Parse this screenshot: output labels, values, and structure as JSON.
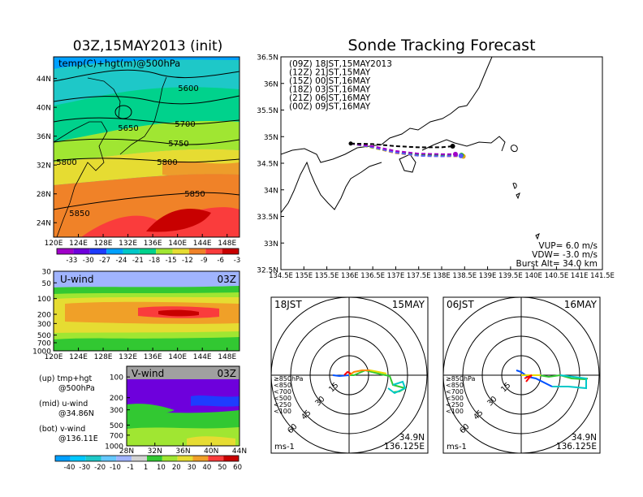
{
  "left_title": "03Z,15MAY2013 (init)",
  "right_title": "Sonde Tracking Forecast",
  "top_map": {
    "label": "temp(C)+hgt(m)@500hPa",
    "lat_labels": [
      "44N",
      "40N",
      "36N",
      "32N",
      "28N",
      "24N"
    ],
    "lon_labels": [
      "120E",
      "124E",
      "128E",
      "132E",
      "136E",
      "140E",
      "144E",
      "148E"
    ],
    "contour_labels": [
      "5600",
      "5650",
      "5700",
      "5750",
      "5800",
      "5800",
      "5850",
      "5850"
    ],
    "colorbar": {
      "labels": [
        "-33",
        "-30",
        "-27",
        "-24",
        "-21",
        "-18",
        "-15",
        "-12",
        "-9",
        "-6",
        "-3"
      ],
      "colors": [
        "#a000c8",
        "#6e00dc",
        "#1e3cff",
        "#00a0ff",
        "#00c8c8",
        "#00d28c",
        "#a0e632",
        "#e6dc32",
        "#f08228",
        "#fa3c3c",
        "#c80000"
      ]
    }
  },
  "uwind": {
    "label": "U-wind",
    "time": "03Z",
    "p_labels": [
      "30",
      "50",
      "100",
      "200",
      "300",
      "500",
      "700",
      "1000"
    ],
    "lon_labels": [
      "120E",
      "124E",
      "128E",
      "132E",
      "136E",
      "140E",
      "144E",
      "148E"
    ]
  },
  "vwind": {
    "label": "V-wind",
    "time": "03Z",
    "p_labels": [
      "100",
      "200",
      "300",
      "500",
      "700",
      "1000"
    ],
    "lat_labels": [
      "28N",
      "32N",
      "36N",
      "40N",
      "44N"
    ]
  },
  "wind_colorbar": {
    "labels": [
      "-40",
      "-30",
      "-20",
      "-10",
      "-1",
      "1",
      "10",
      "20",
      "30",
      "40",
      "50",
      "60"
    ],
    "colors": [
      "#00a0ff",
      "#00c8ff",
      "#1ec8c8",
      "#64c8ff",
      "#a0b4ff",
      "#d2d2d2",
      "#32c832",
      "#a0e632",
      "#e6dc32",
      "#f0a028",
      "#fa3c3c",
      "#c80000"
    ]
  },
  "legend_notes": [
    {
      "a": "(up) tmp+hgt",
      "b": "@500hPa"
    },
    {
      "a": "(mid) u-wind",
      "b": "@34.86N"
    },
    {
      "a": "(bot) v-wind",
      "b": "@136.11E"
    }
  ],
  "track_map": {
    "lat_labels": [
      "36.5N",
      "36N",
      "35.5N",
      "35N",
      "34.5N",
      "34N",
      "33.5N",
      "33N",
      "32.5N"
    ],
    "lon_labels": [
      "134.5E",
      "135E",
      "135.5E",
      "136E",
      "136.5E",
      "137E",
      "137.5E",
      "138E",
      "138.5E",
      "139E",
      "139.5E",
      "140E",
      "140.5E",
      "141E",
      "141.5E"
    ],
    "launches": [
      {
        "label": "(09Z)  18JST,15MAY2013",
        "color": "#000000"
      },
      {
        "label": "(12Z)  21JST,15MAY",
        "color": "#a000c8"
      },
      {
        "label": "(15Z)  00JST,16MAY",
        "color": "#5a5aff"
      },
      {
        "label": "(18Z)  03JST,16MAY",
        "color": "#00b400"
      },
      {
        "label": "(21Z)  06JST,16MAY",
        "color": "#c8c800"
      },
      {
        "label": "(00Z)  09JST,16MAY",
        "color": "#e68c28"
      }
    ],
    "vup": "VUP=  6.0  m/s",
    "vdw": "VDW=  -3.0  m/s",
    "burst": "Burst Alt=  34.0  km"
  },
  "hodographs": [
    {
      "time": "18JST",
      "date": "15MAY",
      "lat": "34.9N",
      "lon": "136.125E"
    },
    {
      "time": "06JST",
      "date": "16MAY",
      "lat": "34.9N",
      "lon": "136.125E"
    }
  ],
  "hodo_common": {
    "ring_labels": [
      "15",
      "30",
      "45",
      "60"
    ],
    "unit": "ms-1",
    "pressure_legend": [
      {
        "label": "≥850hPa",
        "color": "#ff0000"
      },
      {
        "label": "<850",
        "color": "#ff8c00"
      },
      {
        "label": "<700",
        "color": "#e6dc00"
      },
      {
        "label": "<500",
        "color": "#32c832"
      },
      {
        "label": "<250",
        "color": "#00c8c8"
      },
      {
        "label": "<100",
        "color": "#0050ff"
      }
    ]
  },
  "chart_data": [
    {
      "type": "heatmap",
      "title": "temp(C)+hgt(m)@500hPa",
      "xlim": [
        120,
        150
      ],
      "ylim": [
        22,
        47
      ],
      "contours": [
        5600,
        5650,
        5700,
        5750,
        5800,
        5850
      ],
      "colorbar_range": [
        -33,
        -3
      ]
    },
    {
      "type": "heatmap",
      "title": "U-wind",
      "xlim": [
        120,
        150
      ],
      "ylabel": "hPa",
      "yticks": [
        30,
        50,
        100,
        200,
        300,
        500,
        700,
        1000
      ]
    },
    {
      "type": "heatmap",
      "title": "V-wind",
      "xlim": [
        28,
        44
      ],
      "yticks": [
        100,
        200,
        300,
        500,
        700,
        1000
      ]
    },
    {
      "type": "line",
      "title": "Sonde Tracking Forecast",
      "xlim": [
        134.5,
        141.5
      ],
      "ylim": [
        32.5,
        36.5
      ],
      "series": [
        {
          "name": "(09Z) 18JST,15MAY2013",
          "color": "#000000",
          "x": [
            136.02,
            136.5,
            137.0,
            137.5,
            138.0,
            138.24
          ],
          "y": [
            34.87,
            34.86,
            34.82,
            34.8,
            34.8,
            34.82
          ]
        },
        {
          "name": "(12Z) 21JST,15MAY",
          "color": "#a000c8",
          "x": [
            136.02,
            136.5,
            137.0,
            137.5,
            138.0,
            138.3
          ],
          "y": [
            34.87,
            34.82,
            34.73,
            34.68,
            34.67,
            34.67
          ]
        },
        {
          "name": "(15Z) 00JST,16MAY",
          "color": "#5a5aff",
          "x": [
            136.02,
            136.5,
            137.0,
            137.5,
            138.0,
            138.42
          ],
          "y": [
            34.87,
            34.8,
            34.7,
            34.64,
            34.63,
            34.64
          ]
        },
        {
          "name": "(18Z) 03JST,16MAY",
          "color": "#00b400",
          "x": [
            136.02,
            136.5,
            137.0,
            137.5,
            138.0,
            138.43
          ],
          "y": [
            34.87,
            34.8,
            34.71,
            34.66,
            34.65,
            34.65
          ]
        },
        {
          "name": "(21Z) 06JST,16MAY",
          "color": "#c8c800",
          "x": [
            136.02,
            136.5,
            137.0,
            137.5,
            138.0,
            138.45
          ],
          "y": [
            34.87,
            34.79,
            34.7,
            34.65,
            34.64,
            34.64
          ]
        },
        {
          "name": "(00Z) 09JST,16MAY",
          "color": "#e68c28",
          "x": [
            136.02,
            136.5,
            137.0,
            137.5,
            138.0,
            138.47
          ],
          "y": [
            34.87,
            34.79,
            34.69,
            34.64,
            34.63,
            34.63
          ]
        }
      ]
    }
  ]
}
